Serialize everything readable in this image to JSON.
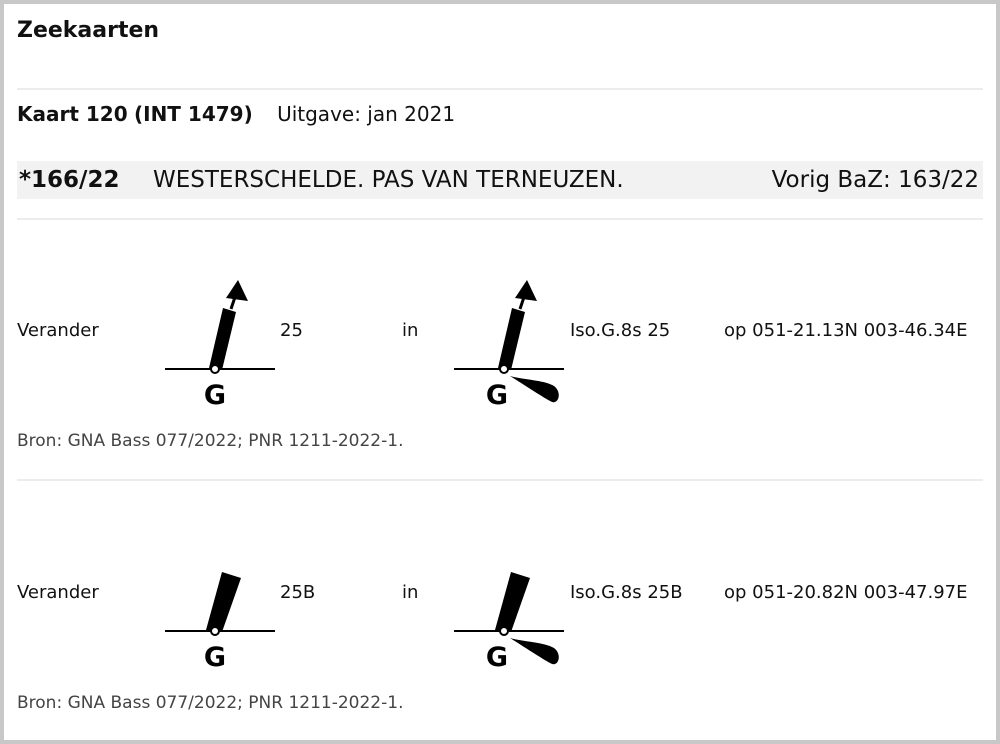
{
  "title": "Zeekaarten",
  "chart": {
    "name": "Kaart 120",
    "int": "(INT 1479)",
    "edition": "Uitgave: jan 2021"
  },
  "notice": {
    "number": "*166/22",
    "subject": "WESTERSCHELDE. PAS VAN TERNEUZEN.",
    "previous": "Vorig BaZ: 163/22"
  },
  "changes": [
    {
      "action": "Verander",
      "old_label": "25",
      "connector": "in",
      "new_label": "Iso.G.8s 25",
      "position": "op 051-21.13N 003-46.34E",
      "source": "Bron: GNA Bass 077/2022; PNR 1211-2022-1.",
      "symbol_letter": "G",
      "old_icon": "green-spar-buoy-with-topmark-icon",
      "new_icon": "green-lighted-spar-buoy-with-topmark-icon"
    },
    {
      "action": "Verander",
      "old_label": "25B",
      "connector": "in",
      "new_label": "Iso.G.8s 25B",
      "position": "op 051-20.82N 003-47.97E",
      "source": "Bron: GNA Bass 077/2022; PNR 1211-2022-1.",
      "symbol_letter": "G",
      "old_icon": "green-spar-buoy-icon",
      "new_icon": "green-lighted-spar-buoy-icon"
    }
  ]
}
